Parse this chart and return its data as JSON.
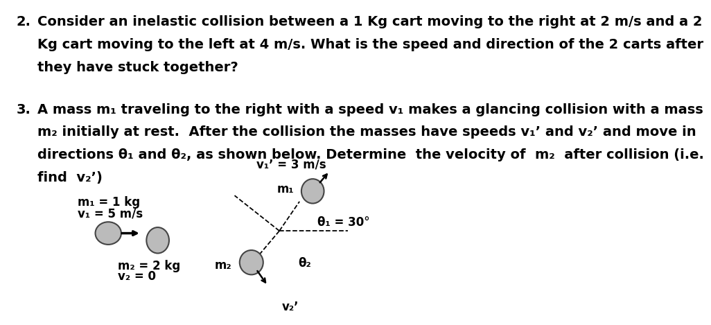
{
  "bg_color": "#ffffff",
  "text_color": "#000000",
  "q2_number": "2.",
  "q2_lines": [
    "Consider an inelastic collision between a 1 Kg cart moving to the right at 2 m/s and a 2",
    "Kg cart moving to the left at 4 m/s. What is the speed and direction of the 2 carts after",
    "they have stuck together?"
  ],
  "q3_number": "3.",
  "q3_lines": [
    "A mass m₁ traveling to the right with a speed v₁ makes a glancing collision with a mass",
    "m₂ initially at rest.  After the collision the masses have speeds v₁ʼ and v₂ʼ and move in",
    "directions θ₁ and θ₂, as shown below. Determine  the velocity of  m₂  after collision (i.e.",
    "find  v₂ʼ)"
  ],
  "ldiag_m1_label": "m₁ = 1 kg",
  "ldiag_v1_label": "v₁ = 5 m/s",
  "ldiag_m2_label": "m₂ = 2 kg",
  "ldiag_v2_label": "v₂ = 0",
  "rdiag_v1prime_label": "v₁ʼ = 3 m/s",
  "rdiag_m1_label": "m₁",
  "rdiag_theta1_label": "θ₁ = 30°",
  "rdiag_theta2_label": "θ₂",
  "rdiag_m2_label": "m₂",
  "rdiag_v2prime_label": "v₂ʼ",
  "ellipse_fc": "#bbbbbb",
  "ellipse_ec": "#444444",
  "font_size": 14,
  "font_size_diag": 12,
  "font_weight": "bold",
  "font_family": "sans-serif"
}
